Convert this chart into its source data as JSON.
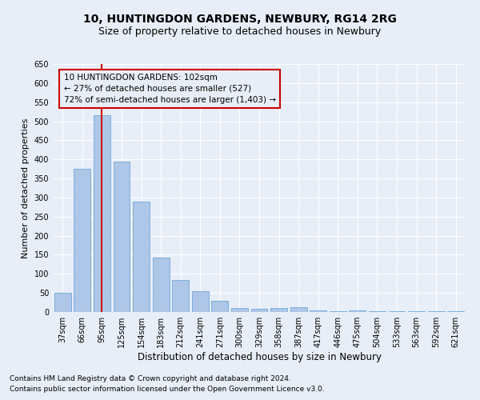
{
  "title1": "10, HUNTINGDON GARDENS, NEWBURY, RG14 2RG",
  "title2": "Size of property relative to detached houses in Newbury",
  "xlabel": "Distribution of detached houses by size in Newbury",
  "ylabel": "Number of detached properties",
  "categories": [
    "37sqm",
    "66sqm",
    "95sqm",
    "125sqm",
    "154sqm",
    "183sqm",
    "212sqm",
    "241sqm",
    "271sqm",
    "300sqm",
    "329sqm",
    "358sqm",
    "387sqm",
    "417sqm",
    "446sqm",
    "475sqm",
    "504sqm",
    "533sqm",
    "563sqm",
    "592sqm",
    "621sqm"
  ],
  "values": [
    50,
    375,
    515,
    395,
    290,
    143,
    83,
    55,
    30,
    10,
    8,
    10,
    13,
    5,
    3,
    5,
    3,
    3,
    3,
    2,
    3
  ],
  "bar_color": "#aec6e8",
  "bar_edge_color": "#5a9fd4",
  "highlighted_bar_index": 2,
  "highlight_line_color": "#cc0000",
  "annotation_line1": "10 HUNTINGDON GARDENS: 102sqm",
  "annotation_line2": "← 27% of detached houses are smaller (527)",
  "annotation_line3": "72% of semi-detached houses are larger (1,403) →",
  "annotation_box_color": "#cc0000",
  "ylim": [
    0,
    650
  ],
  "yticks": [
    0,
    50,
    100,
    150,
    200,
    250,
    300,
    350,
    400,
    450,
    500,
    550,
    600,
    650
  ],
  "background_color": "#e8eef8",
  "grid_color": "#ffffff",
  "footer1": "Contains HM Land Registry data © Crown copyright and database right 2024.",
  "footer2": "Contains public sector information licensed under the Open Government Licence v3.0.",
  "title1_fontsize": 10,
  "title2_fontsize": 9,
  "xlabel_fontsize": 8.5,
  "ylabel_fontsize": 8,
  "tick_fontsize": 7,
  "annotation_fontsize": 7.5,
  "footer_fontsize": 6.5
}
